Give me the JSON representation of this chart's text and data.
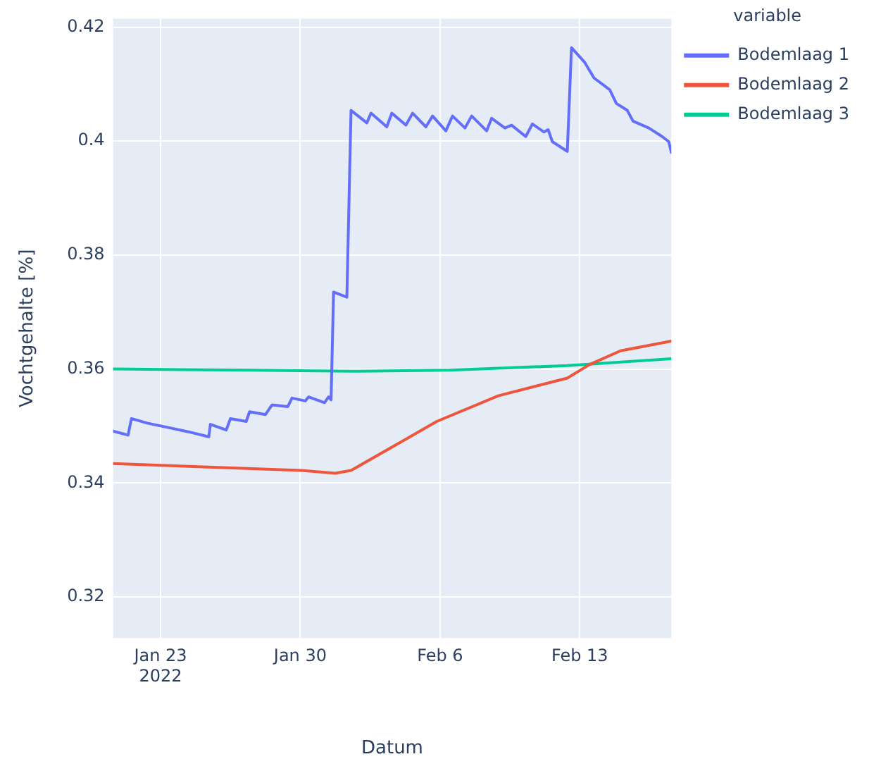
{
  "chart_data": {
    "type": "line",
    "xlabel": "Datum",
    "ylabel": "Vochtgehalte [%]",
    "legend_title": "variable",
    "legend": "top right",
    "grid": true,
    "marker": "none",
    "line_style": "solid",
    "xlim": [
      "2022-01-20T15:00",
      "2022-02-17T14:00"
    ],
    "xticks": [
      {
        "value": "2022-01-23",
        "label": "Jan 23\n2022"
      },
      {
        "value": "2022-01-30",
        "label": "Jan 30"
      },
      {
        "value": "2022-02-06",
        "label": "Feb 6"
      },
      {
        "value": "2022-02-13",
        "label": "Feb 13"
      }
    ],
    "ylim": [
      0.3128,
      0.4215
    ],
    "yticks": [
      0.32,
      0.34,
      0.36,
      0.38,
      0.4,
      0.42
    ],
    "series": [
      {
        "name": "Bodemlaag 1",
        "color": "#636efa",
        "x": [
          "2022-01-20T15:00",
          "2022-01-21T09:00",
          "2022-01-21T13:00",
          "2022-01-22T08:00",
          "2022-01-24T12:00",
          "2022-01-25T10:00",
          "2022-01-25T12:00",
          "2022-01-26T07:00",
          "2022-01-26T12:00",
          "2022-01-27T07:00",
          "2022-01-27T11:00",
          "2022-01-28T06:00",
          "2022-01-28T14:00",
          "2022-01-29T09:00",
          "2022-01-29T14:00",
          "2022-01-30T06:00",
          "2022-01-30T10:00",
          "2022-01-31T05:00",
          "2022-01-31T10:00",
          "2022-01-31T13:00",
          "2022-01-31T16:00",
          "2022-02-01T08:00",
          "2022-02-01T13:00",
          "2022-02-02T08:00",
          "2022-02-02T13:00",
          "2022-02-03T08:00",
          "2022-02-03T14:00",
          "2022-02-04T07:00",
          "2022-02-04T15:00",
          "2022-02-05T07:00",
          "2022-02-05T15:00",
          "2022-02-06T07:00",
          "2022-02-06T15:00",
          "2022-02-07T06:00",
          "2022-02-07T14:00",
          "2022-02-08T08:00",
          "2022-02-08T14:00",
          "2022-02-09T06:00",
          "2022-02-09T14:00",
          "2022-02-10T07:00",
          "2022-02-10T15:00",
          "2022-02-11T05:00",
          "2022-02-11T10:00",
          "2022-02-11T15:00",
          "2022-02-12T09:00",
          "2022-02-12T14:00",
          "2022-02-13T06:00",
          "2022-02-13T17:00",
          "2022-02-14T12:00",
          "2022-02-14T20:00",
          "2022-02-15T09:00",
          "2022-02-15T16:00",
          "2022-02-16T11:00",
          "2022-02-17T03:00",
          "2022-02-17T11:00",
          "2022-02-17T14:00"
        ],
        "values": [
          0.3491,
          0.3484,
          0.3513,
          0.3505,
          0.3489,
          0.3481,
          0.3503,
          0.3493,
          0.3513,
          0.3508,
          0.3525,
          0.352,
          0.3537,
          0.3534,
          0.3549,
          0.3544,
          0.3551,
          0.3541,
          0.3551,
          0.3546,
          0.3735,
          0.3726,
          0.4054,
          0.4032,
          0.4049,
          0.4025,
          0.4049,
          0.4028,
          0.4049,
          0.4025,
          0.4044,
          0.4018,
          0.4044,
          0.4023,
          0.4044,
          0.4018,
          0.404,
          0.4023,
          0.4028,
          0.4008,
          0.403,
          0.4016,
          0.402,
          0.3999,
          0.3982,
          0.4164,
          0.4138,
          0.4111,
          0.409,
          0.4066,
          0.4054,
          0.4035,
          0.4023,
          0.4008,
          0.3999,
          0.398
        ]
      },
      {
        "name": "Bodemlaag 2",
        "color": "#ef553b",
        "x": [
          "2022-01-20T15:00",
          "2022-01-30T01:00",
          "2022-01-31T18:00",
          "2022-02-01T13:00",
          "2022-02-04T12:00",
          "2022-02-05T20:00",
          "2022-02-08T22:00",
          "2022-02-12T09:00",
          "2022-02-13T12:00",
          "2022-02-15T01:00",
          "2022-02-17T14:00"
        ],
        "values": [
          0.3434,
          0.3422,
          0.3417,
          0.3422,
          0.3481,
          0.3508,
          0.3553,
          0.3584,
          0.3608,
          0.3632,
          0.3649
        ]
      },
      {
        "name": "Bodemlaag 3",
        "color": "#00cc96",
        "x": [
          "2022-01-20T15:00",
          "2022-01-27T12:00",
          "2022-02-01T13:00",
          "2022-02-06T12:00",
          "2022-02-12T09:00",
          "2022-02-17T14:00"
        ],
        "values": [
          0.36,
          0.3598,
          0.3596,
          0.3598,
          0.3606,
          0.3618
        ]
      }
    ]
  }
}
